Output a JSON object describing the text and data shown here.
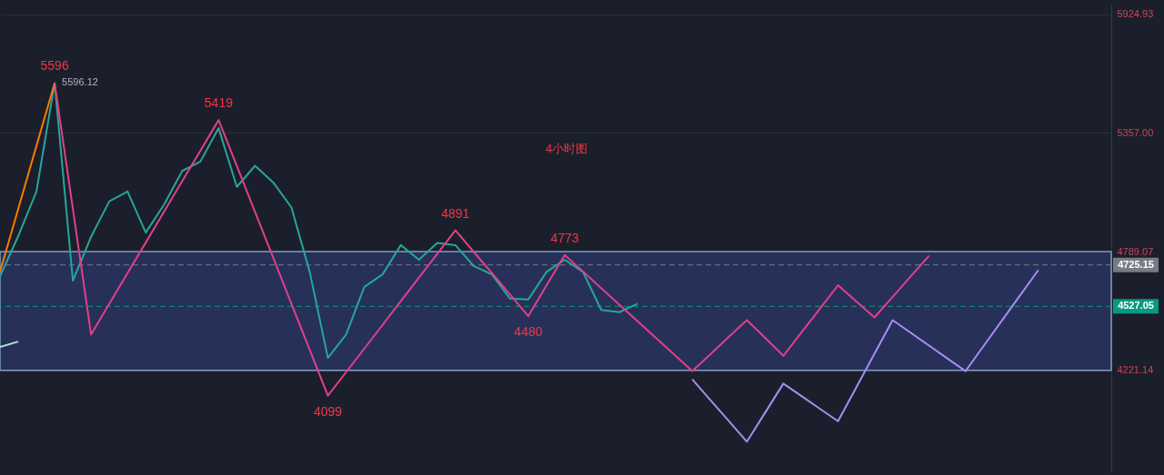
{
  "chart_data": {
    "type": "line",
    "categories": [
      null,
      null,
      null,
      null,
      null,
      null,
      null,
      null,
      null,
      null,
      null,
      null,
      null,
      null,
      null,
      null,
      null,
      null,
      null,
      null,
      null,
      null,
      null,
      null,
      null,
      null,
      null,
      null,
      null,
      null,
      null,
      null,
      null,
      null,
      null,
      null,
      null,
      null,
      null,
      null,
      null,
      null,
      null,
      null,
      null,
      null,
      null,
      null,
      null,
      null,
      null,
      null,
      null,
      null,
      null,
      null,
      null,
      null,
      null,
      null,
      null,
      null
    ],
    "ylim": [
      3737,
      5976
    ],
    "yticks": [
      5924.93,
      {
        "value": 5357,
        "label": "5357.00"
      },
      4789.07,
      4221.14
    ],
    "tick_labels": "y",
    "grid": "y",
    "line_style": "solid",
    "series": [
      {
        "color": "#26a69a",
        "values": [
          4670,
          4863,
          5077,
          5596,
          4650,
          4860,
          5030,
          5077,
          4880,
          5013,
          5175,
          5220,
          5380,
          5099,
          5200,
          5120,
          5000,
          4692,
          4280,
          4392,
          4620,
          4680,
          4820,
          4750,
          4830,
          4820,
          4720,
          4680,
          4564,
          4560,
          4692,
          4750,
          4692,
          4510,
          4499,
          4540,
          null,
          null,
          null,
          null,
          null,
          null,
          null,
          null,
          null,
          null,
          null,
          null,
          null,
          null,
          null,
          null,
          null,
          null,
          null,
          null,
          null,
          null,
          null,
          null,
          null,
          null
        ]
      },
      {
        "color": "#f57c00",
        "values": [
          4692,
          4993,
          5295,
          5596,
          null,
          null,
          null,
          null,
          null,
          null,
          null,
          null,
          null,
          null,
          null,
          null,
          null,
          null,
          null,
          null,
          null,
          null,
          null,
          null,
          null,
          null,
          null,
          null,
          null,
          null,
          null,
          null,
          null,
          null,
          null,
          null,
          null,
          null,
          null,
          null,
          null,
          null,
          null,
          null,
          null,
          null,
          null,
          null,
          null,
          null,
          null,
          null,
          null,
          null,
          null,
          null,
          null,
          null,
          null,
          null,
          null,
          null
        ]
      },
      {
        "color": "#b2dfdb",
        "values": [
          4332,
          4358,
          null,
          null,
          null,
          null,
          null,
          null,
          null,
          null,
          null,
          null,
          null,
          null,
          null,
          null,
          null,
          null,
          null,
          null,
          null,
          null,
          null,
          null,
          null,
          null,
          null,
          null,
          null,
          null,
          null,
          null,
          null,
          null,
          null,
          null,
          null,
          null,
          null,
          null,
          null,
          null,
          null,
          null,
          null,
          null,
          null,
          null,
          null,
          null,
          null,
          null,
          null,
          null,
          null,
          null,
          null,
          null,
          null,
          null,
          null,
          null
        ]
      },
      {
        "color": "#e0408a",
        "values": [
          null,
          null,
          null,
          5596,
          4994,
          4392,
          4539,
          4686,
          4832,
          4979,
          5126,
          5272,
          5419,
          5199,
          4979,
          4759,
          4539,
          4319,
          4099,
          4212,
          4325,
          4438,
          4552,
          4665,
          4778,
          4891,
          4788,
          4686,
          4583,
          4480,
          4627,
          4773,
          4694,
          4614,
          4535,
          4455,
          4376,
          4297,
          4217,
          4298,
          4380,
          4461,
          4376,
          4290,
          4403,
          4515,
          4628,
          4551,
          4474,
          4572,
          4671,
          4769,
          null,
          null,
          null,
          null,
          null,
          null,
          null,
          null,
          null,
          null
        ]
      },
      {
        "color": "#a98cf0",
        "values": [
          null,
          null,
          null,
          null,
          null,
          null,
          null,
          null,
          null,
          null,
          null,
          null,
          null,
          null,
          null,
          null,
          null,
          null,
          null,
          null,
          null,
          null,
          null,
          null,
          null,
          null,
          null,
          null,
          null,
          null,
          null,
          null,
          null,
          null,
          null,
          null,
          null,
          null,
          4178,
          4078,
          3979,
          3879,
          4018,
          4157,
          4097,
          4037,
          3977,
          4138,
          4300,
          4461,
          4400,
          4339,
          4278,
          4217,
          4338,
          4459,
          4580,
          4701,
          null,
          null,
          null,
          null
        ]
      }
    ],
    "bands": [
      {
        "axis": "y",
        "from": 4221.14,
        "to": 4789.07,
        "color": "#2a3461"
      }
    ],
    "ref_lines": [
      {
        "axis": "y",
        "value": 4725.15,
        "label": "4725.15",
        "color": "#787b86",
        "line_style": "dashed"
      },
      {
        "axis": "y",
        "value": 4527.05,
        "label": "4527.05",
        "color": "#089981",
        "line_style": "dashed"
      }
    ],
    "annotations": [
      "4小时图",
      {
        "text": "5596",
        "y": 5596
      },
      "5596.12",
      {
        "text": "5419",
        "y": 5419
      },
      {
        "text": "4099",
        "y": 4099
      },
      {
        "text": "4891",
        "y": 4891
      },
      {
        "text": "4480",
        "y": 4480
      },
      {
        "text": "4773",
        "y": 4773
      }
    ]
  }
}
